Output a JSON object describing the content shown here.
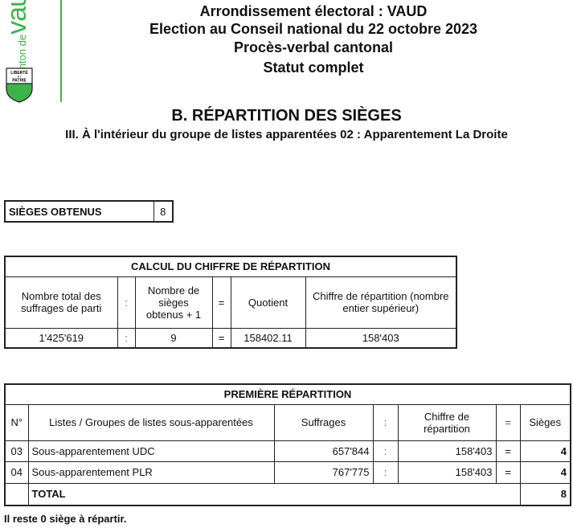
{
  "logo": {
    "text_small": "canton de",
    "text_big": "vaud",
    "motto": "LIBERTÉ ET PATRIE",
    "color": "#3cb44b"
  },
  "header": {
    "line1": "Arrondissement électoral : VAUD",
    "line2": "Election au Conseil national du 22 octobre 2023",
    "line3": "Procès-verbal cantonal",
    "line4": "Statut complet"
  },
  "section": {
    "title": "B. RÉPARTITION DES SIÈGES",
    "subtitle": "III. À l'intérieur du groupe de listes apparentées 02 : Apparentement La Droite"
  },
  "seats": {
    "label": "SIÈGES OBTENUS",
    "value": "8"
  },
  "calcul": {
    "title": "CALCUL DU CHIFFRE DE RÉPARTITION",
    "headers": [
      "Nombre total des suffrages de parti",
      ":",
      "Nombre de sièges obtenus + 1",
      "=",
      "Quotient",
      "Chiffre de répartition (nombre entier supérieur)"
    ],
    "values": [
      "1'425'619",
      ":",
      "9",
      "=",
      "158402.11",
      "158'403"
    ]
  },
  "premiere": {
    "title": "PREMIÈRE RÉPARTITION",
    "headers": {
      "no": "N°",
      "list": "Listes / Groupes de listes sous-apparentées",
      "suffrages": "Suffrages",
      "colon": ":",
      "chiffre": "Chiffre de répartition",
      "eq": "=",
      "sieges": "Sièges"
    },
    "rows": [
      {
        "no": "03",
        "list": "Sous-apparentement UDC",
        "suffrages": "657'844",
        "colon": ":",
        "chiffre": "158'403",
        "eq": "=",
        "sieges": "4"
      },
      {
        "no": "04",
        "list": "Sous-apparentement PLR",
        "suffrages": "767'775",
        "colon": ":",
        "chiffre": "158'403",
        "eq": "=",
        "sieges": "4"
      }
    ],
    "total_label": "TOTAL",
    "total_value": "8"
  },
  "footer": "Il reste 0 siège à répartir."
}
